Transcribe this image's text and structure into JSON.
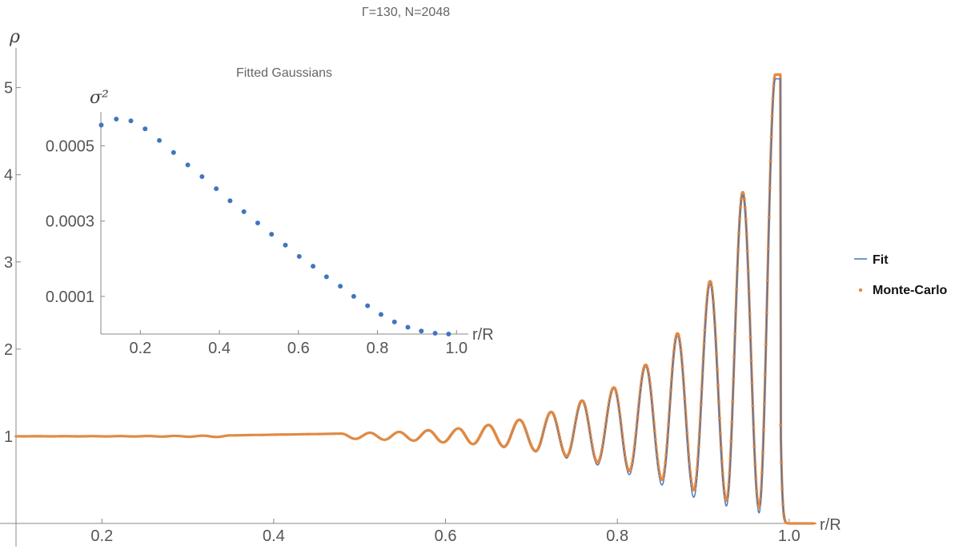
{
  "chart_data": [
    {
      "type": "line",
      "title": "Γ=130, N=2048",
      "xlabel": "r/R",
      "ylabel": "ρ",
      "xlim": [
        0.1,
        1.03
      ],
      "ylim": [
        0,
        5.4
      ],
      "x_ticks": [
        0.2,
        0.4,
        0.6,
        0.8,
        1.0
      ],
      "x_tick_labels": [
        "0.2",
        "0.4",
        "0.6",
        "0.8",
        "1.0"
      ],
      "y_ticks": [
        1,
        2,
        3,
        4,
        5
      ],
      "y_tick_labels": [
        "1",
        "2",
        "3",
        "4",
        "5"
      ],
      "legend_position": "right",
      "legend": [
        "Fit",
        "Monte-Carlo"
      ],
      "series": [
        {
          "name": "Fit",
          "style": "line",
          "color": "#3f76bf",
          "peaks": [
            0.984,
            0.946,
            0.908,
            0.87,
            0.833,
            0.796,
            0.759,
            0.723,
            0.686,
            0.65,
            0.615,
            0.58,
            0.546,
            0.512,
            0.479,
            0.446,
            0.413,
            0.381,
            0.349
          ],
          "peak_heights": [
            5.1,
            3.78,
            2.75,
            2.16,
            1.8,
            1.55,
            1.4,
            1.27,
            1.18,
            1.12,
            1.09,
            1.06,
            1.05,
            1.04,
            1.03,
            1.025,
            1.02,
            1.015,
            1.01
          ],
          "troughs": [
            0.965,
            0.927,
            0.889,
            0.852,
            0.814,
            0.777,
            0.741,
            0.705,
            0.668,
            0.632,
            0.597,
            0.563,
            0.529,
            0.495
          ],
          "trough_heights": [
            0.12,
            0.2,
            0.3,
            0.44,
            0.56,
            0.67,
            0.75,
            0.82,
            0.87,
            0.91,
            0.93,
            0.95,
            0.96,
            0.97
          ],
          "bulk_value": 1.0,
          "edge_cutoff": 0.99
        },
        {
          "name": "Monte-Carlo",
          "style": "points",
          "color": "#e08a44",
          "peaks": [
            0.984,
            0.946,
            0.908,
            0.87,
            0.833,
            0.796,
            0.759,
            0.723,
            0.686,
            0.65,
            0.615,
            0.58,
            0.546,
            0.512,
            0.479,
            0.446,
            0.413,
            0.381,
            0.349
          ],
          "peak_heights": [
            5.15,
            3.8,
            2.78,
            2.18,
            1.82,
            1.56,
            1.41,
            1.28,
            1.19,
            1.13,
            1.09,
            1.07,
            1.05,
            1.04,
            1.03,
            1.025,
            1.02,
            1.015,
            1.01
          ],
          "troughs": [
            0.965,
            0.927,
            0.889,
            0.852,
            0.814,
            0.777,
            0.741,
            0.705,
            0.668,
            0.632,
            0.597,
            0.563,
            0.529,
            0.495
          ],
          "trough_heights": [
            0.18,
            0.26,
            0.38,
            0.5,
            0.6,
            0.7,
            0.77,
            0.83,
            0.88,
            0.91,
            0.93,
            0.95,
            0.96,
            0.97
          ],
          "bulk_value": 1.0,
          "edge_cutoff": 0.99
        }
      ]
    },
    {
      "type": "scatter",
      "title": "Fitted Gaussians",
      "xlabel": "r/R",
      "ylabel": "σ²",
      "xlim": [
        0.1,
        1.04
      ],
      "ylim": [
        0.0,
        0.00059
      ],
      "x_ticks": [
        0.2,
        0.4,
        0.6,
        0.8,
        1.0
      ],
      "x_tick_labels": [
        "0.2",
        "0.4",
        "0.6",
        "0.8",
        "1.0"
      ],
      "y_ticks": [
        0.0001,
        0.0003,
        0.0005
      ],
      "y_tick_labels": [
        "0.0001",
        "0.0003",
        "0.0005"
      ],
      "series": [
        {
          "color": "#3f76bf",
          "x": [
            0.101,
            0.139,
            0.176,
            0.212,
            0.248,
            0.284,
            0.32,
            0.356,
            0.392,
            0.427,
            0.462,
            0.497,
            0.532,
            0.567,
            0.602,
            0.637,
            0.671,
            0.706,
            0.74,
            0.775,
            0.809,
            0.843,
            0.877,
            0.911,
            0.946,
            0.98
          ],
          "y": [
            0.000555,
            0.000571,
            0.000566,
            0.000545,
            0.000514,
            0.000482,
            0.000449,
            0.000418,
            0.000386,
            0.000354,
            0.000325,
            0.000295,
            0.000265,
            0.000236,
            0.000206,
            0.00018,
            0.000152,
            0.000127,
            0.0001,
            7.5e-05,
            5.2e-05,
            3.2e-05,
            1.8e-05,
            8e-06,
            2e-06,
            0.0
          ]
        }
      ]
    }
  ]
}
